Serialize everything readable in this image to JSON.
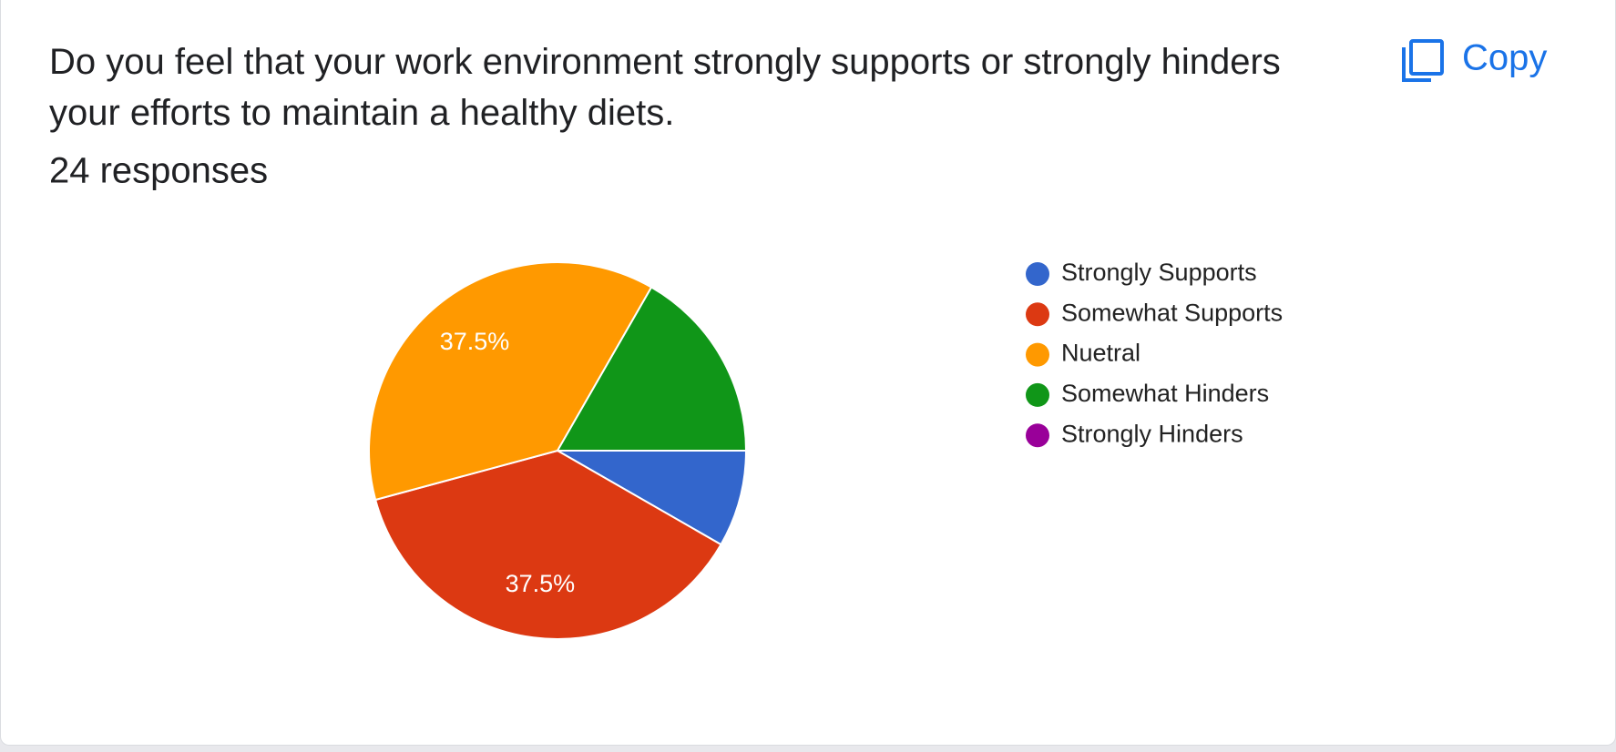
{
  "copy_button": "Copy",
  "chart_data": {
    "type": "pie",
    "title": "Do you feel that your work environment strongly supports or strongly hinders your efforts to maintain a healthy diets.",
    "subtitle": "24 responses",
    "categories": [
      "Strongly Supports",
      "Somewhat Supports",
      "Nuetral",
      "Somewhat Hinders",
      "Strongly Hinders"
    ],
    "values": [
      8.3,
      37.5,
      37.5,
      16.7,
      0
    ],
    "value_labels": [
      null,
      "37.5%",
      "37.5%",
      null,
      null
    ],
    "colors": [
      "#3366cc",
      "#dc3912",
      "#ff9900",
      "#109618",
      "#990099"
    ],
    "legend": "right"
  }
}
